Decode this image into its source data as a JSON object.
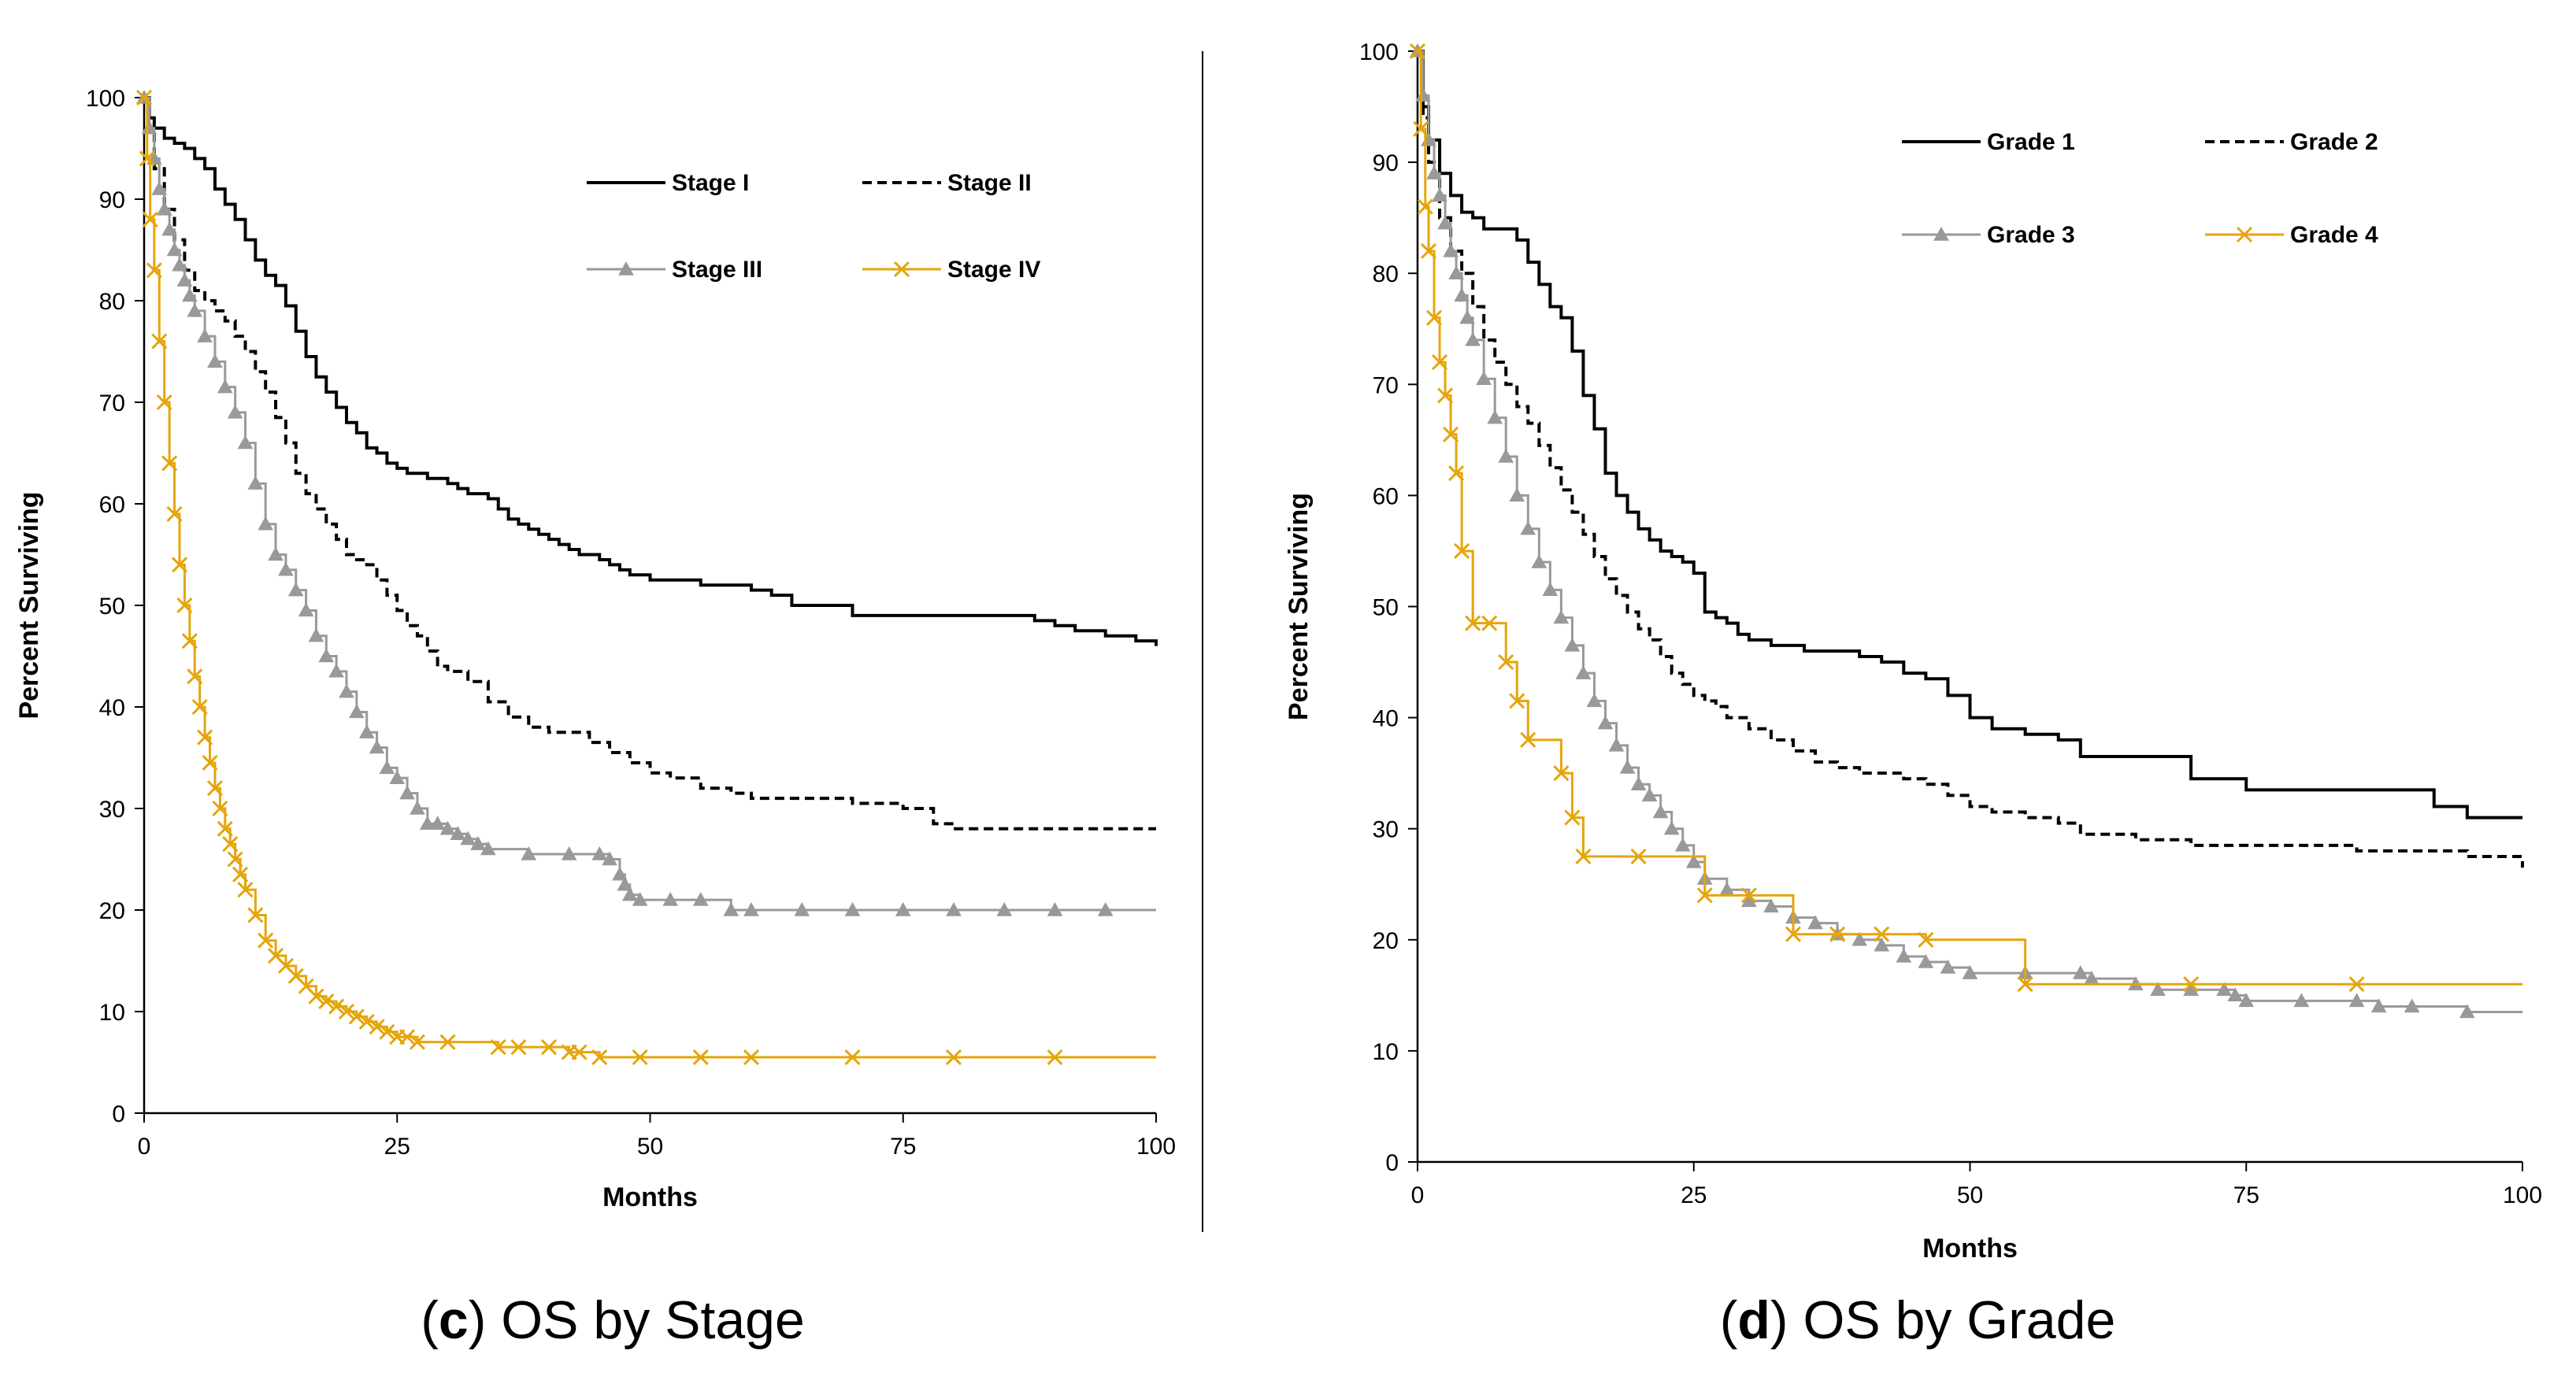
{
  "chart_data": [
    {
      "id": "c",
      "type": "line",
      "title": "",
      "caption": {
        "letter": "c",
        "text": "OS by Stage"
      },
      "xlabel": "Months",
      "ylabel": "Percent Surviving",
      "xlim": [
        0,
        100
      ],
      "ylim": [
        0,
        100
      ],
      "xticks": [
        0,
        25,
        50,
        75,
        100
      ],
      "yticks": [
        0,
        10,
        20,
        30,
        40,
        50,
        60,
        70,
        80,
        90,
        100
      ],
      "grid": false,
      "legend_position": "top-right",
      "series": [
        {
          "name": "Stage I",
          "style": "solid",
          "color": "#000000",
          "marker": "none",
          "x": [
            0,
            0.5,
            1,
            2,
            3,
            4,
            5,
            6,
            7,
            8,
            9,
            10,
            11,
            12,
            13,
            14,
            15,
            16,
            17,
            18,
            19,
            20,
            21,
            22,
            23,
            24,
            25,
            26,
            27,
            28,
            29,
            30,
            31,
            32,
            33,
            34,
            35,
            36,
            37,
            38,
            39,
            40,
            41,
            42,
            43,
            45,
            46,
            47,
            48,
            50,
            52,
            55,
            58,
            60,
            62,
            64,
            66,
            70,
            75,
            80,
            85,
            88,
            90,
            92,
            95,
            98,
            100
          ],
          "y": [
            100,
            98,
            97,
            96,
            95.5,
            95,
            94,
            93,
            91,
            89.5,
            88,
            86,
            84,
            82.5,
            81.5,
            79.5,
            77,
            74.5,
            72.5,
            71,
            69.5,
            68,
            67,
            65.5,
            65,
            64,
            63.5,
            63,
            63,
            62.5,
            62.5,
            62,
            61.5,
            61,
            61,
            60.5,
            59.5,
            58.5,
            58,
            57.5,
            57,
            56.5,
            56,
            55.5,
            55,
            54.5,
            54,
            53.5,
            53,
            52.5,
            52.5,
            52,
            52,
            51.5,
            51,
            50,
            50,
            49,
            49,
            49,
            49,
            48.5,
            48,
            47.5,
            47,
            46.5,
            46
          ]
        },
        {
          "name": "Stage II",
          "style": "dashed",
          "color": "#000000",
          "marker": "none",
          "x": [
            0,
            0.5,
            1,
            2,
            3,
            4,
            5,
            6,
            7,
            8,
            9,
            10,
            11,
            12,
            13,
            14,
            15,
            16,
            17,
            18,
            19,
            20,
            21,
            22,
            23,
            24,
            25,
            26,
            27,
            28,
            29,
            30,
            32,
            34,
            36,
            38,
            40,
            42,
            44,
            46,
            48,
            50,
            52,
            55,
            58,
            60,
            63,
            66,
            70,
            75,
            78,
            80,
            85,
            90,
            95,
            100
          ],
          "y": [
            100,
            97,
            93,
            89,
            86,
            83,
            81,
            80,
            79,
            78,
            76.5,
            75,
            73,
            71,
            68.5,
            66,
            63,
            61,
            59.5,
            58,
            56.5,
            55,
            54.5,
            54,
            52.5,
            51,
            49.5,
            48,
            47,
            45.5,
            44,
            43.5,
            42.5,
            40.5,
            39,
            38,
            37.5,
            37.5,
            36.5,
            35.5,
            34.5,
            33.5,
            33,
            32,
            31.5,
            31,
            31,
            31,
            30.5,
            30,
            28.5,
            28,
            28,
            28,
            28,
            28
          ]
        },
        {
          "name": "Stage III",
          "style": "solid",
          "color": "#999999",
          "marker": "triangle",
          "x": [
            0,
            0.5,
            1,
            1.5,
            2,
            2.5,
            3,
            3.5,
            4,
            4.5,
            5,
            6,
            7,
            8,
            9,
            10,
            11,
            12,
            13,
            14,
            15,
            16,
            17,
            18,
            19,
            20,
            21,
            22,
            23,
            24,
            25,
            26,
            27,
            28,
            29,
            30,
            31,
            32,
            33,
            34,
            38,
            42,
            45,
            46,
            47,
            47.5,
            48,
            49,
            52,
            55,
            58,
            60,
            65,
            70,
            75,
            80,
            85,
            90,
            95,
            100
          ],
          "y": [
            100,
            97,
            94,
            91,
            89,
            87,
            85,
            83.5,
            82,
            80.5,
            79,
            76.5,
            74,
            71.5,
            69,
            66,
            62,
            58,
            55,
            53.5,
            51.5,
            49.5,
            47,
            45,
            43.5,
            41.5,
            39.5,
            37.5,
            36,
            34,
            33,
            31.5,
            30,
            28.5,
            28.5,
            28,
            27.5,
            27,
            26.5,
            26,
            25.5,
            25.5,
            25.5,
            25,
            23.5,
            22.5,
            21.5,
            21,
            21,
            21,
            20,
            20,
            20,
            20,
            20,
            20,
            20,
            20,
            20,
            20
          ]
        },
        {
          "name": "Stage IV",
          "style": "solid",
          "color": "#e5a50a",
          "marker": "x",
          "x": [
            0,
            0.3,
            0.6,
            1,
            1.5,
            2,
            2.5,
            3,
            3.5,
            4,
            4.5,
            5,
            5.5,
            6,
            6.5,
            7,
            7.5,
            8,
            8.5,
            9,
            9.5,
            10,
            11,
            12,
            13,
            14,
            15,
            16,
            17,
            18,
            19,
            20,
            21,
            22,
            23,
            24,
            25,
            26,
            27,
            30,
            35,
            37,
            40,
            42,
            43,
            45,
            49,
            55,
            60,
            70,
            80,
            90,
            100
          ],
          "y": [
            100,
            94,
            88,
            83,
            76,
            70,
            64,
            59,
            54,
            50,
            46.5,
            43,
            40,
            37,
            34.5,
            32,
            30,
            28,
            26.5,
            25,
            23.5,
            22,
            19.5,
            17,
            15.5,
            14.5,
            13.5,
            12.5,
            11.5,
            11,
            10.5,
            10,
            9.5,
            9,
            8.5,
            8,
            7.5,
            7.5,
            7,
            7,
            6.5,
            6.5,
            6.5,
            6,
            6,
            5.5,
            5.5,
            5.5,
            5.5,
            5.5,
            5.5,
            5.5,
            5.5
          ]
        }
      ]
    },
    {
      "id": "d",
      "type": "line",
      "title": "",
      "caption": {
        "letter": "d",
        "text": "OS by Grade"
      },
      "xlabel": "Months",
      "ylabel": "Percent Surviving",
      "xlim": [
        0,
        100
      ],
      "ylim": [
        0,
        100
      ],
      "xticks": [
        0,
        25,
        50,
        75,
        100
      ],
      "yticks": [
        0,
        10,
        20,
        30,
        40,
        50,
        60,
        70,
        80,
        90,
        100
      ],
      "grid": false,
      "legend_position": "top-right",
      "series": [
        {
          "name": "Grade 1",
          "style": "solid",
          "color": "#000000",
          "marker": "none",
          "x": [
            0,
            0.5,
            1,
            2,
            3,
            4,
            5,
            6,
            7,
            8,
            9,
            10,
            11,
            12,
            13,
            14,
            15,
            16,
            17,
            18,
            19,
            20,
            21,
            22,
            23,
            24,
            25,
            26,
            27,
            28,
            29,
            30,
            32,
            35,
            38,
            40,
            42,
            44,
            46,
            48,
            50,
            52,
            55,
            58,
            60,
            65,
            70,
            75,
            80,
            85,
            90,
            92,
            95,
            100
          ],
          "y": [
            100,
            95,
            92,
            89,
            87,
            85.5,
            85,
            84,
            84,
            84,
            83,
            81,
            79,
            77,
            76,
            73,
            69,
            66,
            62,
            60,
            58.5,
            57,
            56,
            55,
            54.5,
            54,
            53,
            49.5,
            49,
            48.5,
            47.5,
            47,
            46.5,
            46,
            46,
            45.5,
            45,
            44,
            43.5,
            42,
            40,
            39,
            38.5,
            38,
            36.5,
            36.5,
            34.5,
            33.5,
            33.5,
            33.5,
            33.5,
            32,
            31,
            31
          ]
        },
        {
          "name": "Grade 2",
          "style": "dashed",
          "color": "#000000",
          "marker": "none",
          "x": [
            0,
            0.5,
            1,
            2,
            3,
            4,
            5,
            6,
            7,
            8,
            9,
            10,
            11,
            12,
            13,
            14,
            15,
            16,
            17,
            18,
            19,
            20,
            21,
            22,
            23,
            24,
            25,
            26,
            27,
            28,
            30,
            32,
            34,
            36,
            38,
            40,
            42,
            44,
            46,
            48,
            50,
            52,
            55,
            58,
            60,
            65,
            70,
            75,
            80,
            85,
            90,
            95,
            100
          ],
          "y": [
            100,
            94,
            90,
            85,
            82,
            80,
            77,
            74,
            72,
            70,
            68,
            66.5,
            64.5,
            62.5,
            60.5,
            58.5,
            56.5,
            54.5,
            52.5,
            51,
            49.5,
            48,
            47,
            45.5,
            44,
            43,
            42,
            41.5,
            41,
            40,
            39,
            38,
            37,
            36,
            35.5,
            35,
            35,
            34.5,
            34,
            33,
            32,
            31.5,
            31,
            30.5,
            29.5,
            29,
            28.5,
            28.5,
            28.5,
            28,
            28,
            27.5,
            26.5
          ]
        },
        {
          "name": "Grade 3",
          "style": "solid",
          "color": "#999999",
          "marker": "triangle",
          "x": [
            0,
            0.5,
            1,
            1.5,
            2,
            2.5,
            3,
            3.5,
            4,
            4.5,
            5,
            6,
            7,
            8,
            9,
            10,
            11,
            12,
            13,
            14,
            15,
            16,
            17,
            18,
            19,
            20,
            21,
            22,
            23,
            24,
            25,
            26,
            28,
            30,
            32,
            34,
            36,
            38,
            40,
            42,
            44,
            46,
            48,
            50,
            55,
            60,
            61,
            65,
            67,
            70,
            73,
            74,
            75,
            80,
            85,
            87,
            90,
            95,
            100
          ],
          "y": [
            100,
            96,
            92,
            89,
            87,
            84.5,
            82,
            80,
            78,
            76,
            74,
            70.5,
            67,
            63.5,
            60,
            57,
            54,
            51.5,
            49,
            46.5,
            44,
            41.5,
            39.5,
            37.5,
            35.5,
            34,
            33,
            31.5,
            30,
            28.5,
            27,
            25.5,
            24.5,
            23.5,
            23,
            22,
            21.5,
            20.5,
            20,
            19.5,
            18.5,
            18,
            17.5,
            17,
            17,
            17,
            16.5,
            16,
            15.5,
            15.5,
            15.5,
            15,
            14.5,
            14.5,
            14.5,
            14,
            14,
            13.5,
            13.5
          ]
        },
        {
          "name": "Grade 4",
          "style": "solid",
          "color": "#e5a50a",
          "marker": "x",
          "step": true,
          "x": [
            0,
            0.3,
            0.7,
            1,
            1.5,
            2,
            2.5,
            3,
            3.5,
            4,
            5,
            6.5,
            8,
            9,
            10,
            13,
            14,
            15,
            20,
            26,
            30,
            34,
            38,
            42,
            46,
            55,
            70,
            85,
            100
          ],
          "y": [
            100,
            93,
            86,
            82,
            76,
            72,
            69,
            65.5,
            62,
            55,
            48.5,
            48.5,
            45,
            41.5,
            38,
            35,
            31,
            27.5,
            27.5,
            24,
            24,
            20.5,
            20.5,
            20.5,
            20,
            16,
            16,
            16,
            16
          ]
        }
      ]
    }
  ]
}
